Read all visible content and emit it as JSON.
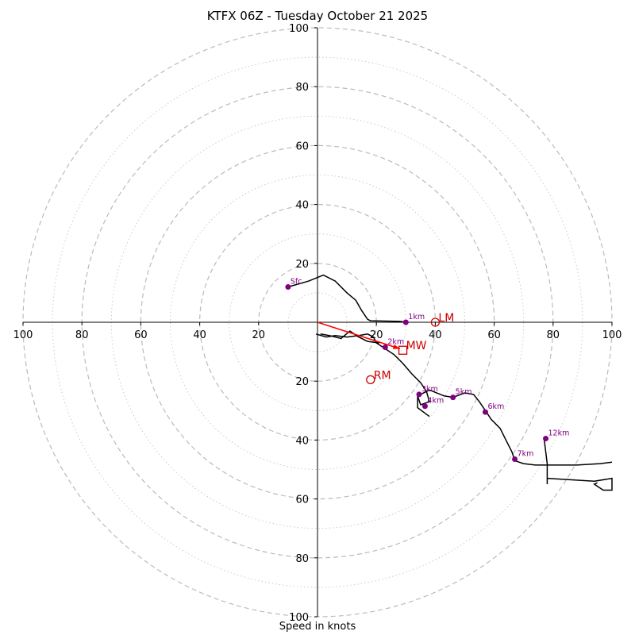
{
  "chart_data": {
    "type": "hodograph",
    "title": "KTFX 06Z - Tuesday October 21 2025",
    "xlabel": "Speed in knots",
    "range": 100,
    "ring_major": [
      20,
      40,
      60,
      80,
      100
    ],
    "ring_minor": [
      10,
      30,
      50,
      70,
      90
    ],
    "x_ticks": [
      {
        "value": -100,
        "label": "100"
      },
      {
        "value": -80,
        "label": "80"
      },
      {
        "value": -60,
        "label": "60"
      },
      {
        "value": -40,
        "label": "40"
      },
      {
        "value": -20,
        "label": "20"
      },
      {
        "value": 20,
        "label": "20"
      },
      {
        "value": 40,
        "label": "40"
      },
      {
        "value": 60,
        "label": "60"
      },
      {
        "value": 80,
        "label": "80"
      },
      {
        "value": 100,
        "label": "100"
      }
    ],
    "y_ticks": [
      {
        "value": 100,
        "label": "100"
      },
      {
        "value": 80,
        "label": "80"
      },
      {
        "value": 60,
        "label": "60"
      },
      {
        "value": 40,
        "label": "40"
      },
      {
        "value": 20,
        "label": "20"
      },
      {
        "value": -20,
        "label": "20"
      },
      {
        "value": -40,
        "label": "40"
      },
      {
        "value": -60,
        "label": "60"
      },
      {
        "value": -80,
        "label": "80"
      },
      {
        "value": -100,
        "label": "100"
      }
    ],
    "hodograph_line": [
      [
        -0.5,
        -4
      ],
      [
        3,
        -5
      ],
      [
        6,
        -4.5
      ],
      [
        10,
        -5
      ],
      [
        14,
        -4.5
      ],
      [
        17,
        -4
      ],
      [
        19,
        -5
      ],
      [
        20,
        -7
      ],
      [
        23,
        -9
      ],
      [
        26,
        -11
      ],
      [
        29,
        -14
      ],
      [
        32,
        -17.5
      ],
      [
        35,
        -20.5
      ],
      [
        37,
        -23.5
      ],
      [
        38,
        -27
      ],
      [
        35,
        -28
      ],
      [
        34,
        -25
      ],
      [
        38,
        -23
      ],
      [
        43,
        -25
      ],
      [
        46,
        -25.5
      ],
      [
        50,
        -24
      ],
      [
        53,
        -24.5
      ],
      [
        55,
        -27
      ],
      [
        57,
        -30
      ],
      [
        59,
        -33
      ],
      [
        62,
        -36
      ],
      [
        64,
        -40
      ],
      [
        66,
        -44
      ],
      [
        67,
        -47
      ],
      [
        70,
        -48
      ],
      [
        74,
        -48.5
      ],
      [
        80,
        -48.5
      ],
      [
        88,
        -48.5
      ],
      [
        96,
        -48
      ],
      [
        100,
        -47.5
      ]
    ],
    "loose_segments": [
      [
        [
          21,
          -7
        ],
        [
          17,
          -6.5
        ],
        [
          14,
          -5
        ],
        [
          11,
          -3
        ],
        [
          8,
          -5.5
        ],
        [
          4,
          -4.5
        ],
        [
          1,
          -4
        ]
      ],
      [
        [
          34,
          -25
        ],
        [
          34,
          -29
        ],
        [
          38,
          -32
        ]
      ],
      [
        [
          77,
          -40
        ],
        [
          78,
          -48
        ],
        [
          78,
          -53
        ],
        [
          78,
          -55
        ]
      ],
      [
        [
          78,
          -53
        ],
        [
          94,
          -54
        ],
        [
          100,
          -53
        ],
        [
          100,
          -57
        ],
        [
          97,
          -57
        ],
        [
          94,
          -55
        ],
        [
          95,
          -54.5
        ]
      ]
    ],
    "upper_trace": [
      [
        -10,
        12
      ],
      [
        -3,
        14
      ],
      [
        2,
        16
      ],
      [
        6,
        14
      ],
      [
        10,
        10
      ],
      [
        13,
        7.5
      ],
      [
        15,
        4
      ],
      [
        17,
        1
      ],
      [
        18,
        0.5
      ],
      [
        28,
        0.3
      ],
      [
        30,
        0
      ]
    ],
    "height_markers": [
      {
        "label": "Sfc",
        "u": -10,
        "v": 12
      },
      {
        "label": "1km",
        "u": 30,
        "v": 0
      },
      {
        "label": "2km",
        "u": 23,
        "v": -8.5
      },
      {
        "label": "3km",
        "u": 34.5,
        "v": -24.5
      },
      {
        "label": "4km",
        "u": 36.5,
        "v": -28.5
      },
      {
        "label": "5km",
        "u": 46,
        "v": -25.5
      },
      {
        "label": "6km",
        "u": 57,
        "v": -30.5
      },
      {
        "label": "7km",
        "u": 67,
        "v": -46.5
      },
      {
        "label": "12km",
        "u": 77.5,
        "v": -39.5
      }
    ],
    "storm_motion": [
      {
        "label": "LM",
        "u": 40,
        "v": 0,
        "marker": "circle"
      },
      {
        "label": "RM",
        "u": 18,
        "v": -19.5,
        "marker": "circle"
      },
      {
        "label": "MW",
        "u": 29,
        "v": -9.5,
        "marker": "square"
      }
    ],
    "shear_vector": {
      "from": [
        0,
        0
      ],
      "to": [
        28,
        -9
      ]
    }
  },
  "colors": {
    "hodograph": "#000000",
    "marker": "#800080",
    "storm": "#cc0000",
    "shear": "#ff0000",
    "ring_major": "#bbbbbb",
    "ring_minor": "#cccccc"
  }
}
